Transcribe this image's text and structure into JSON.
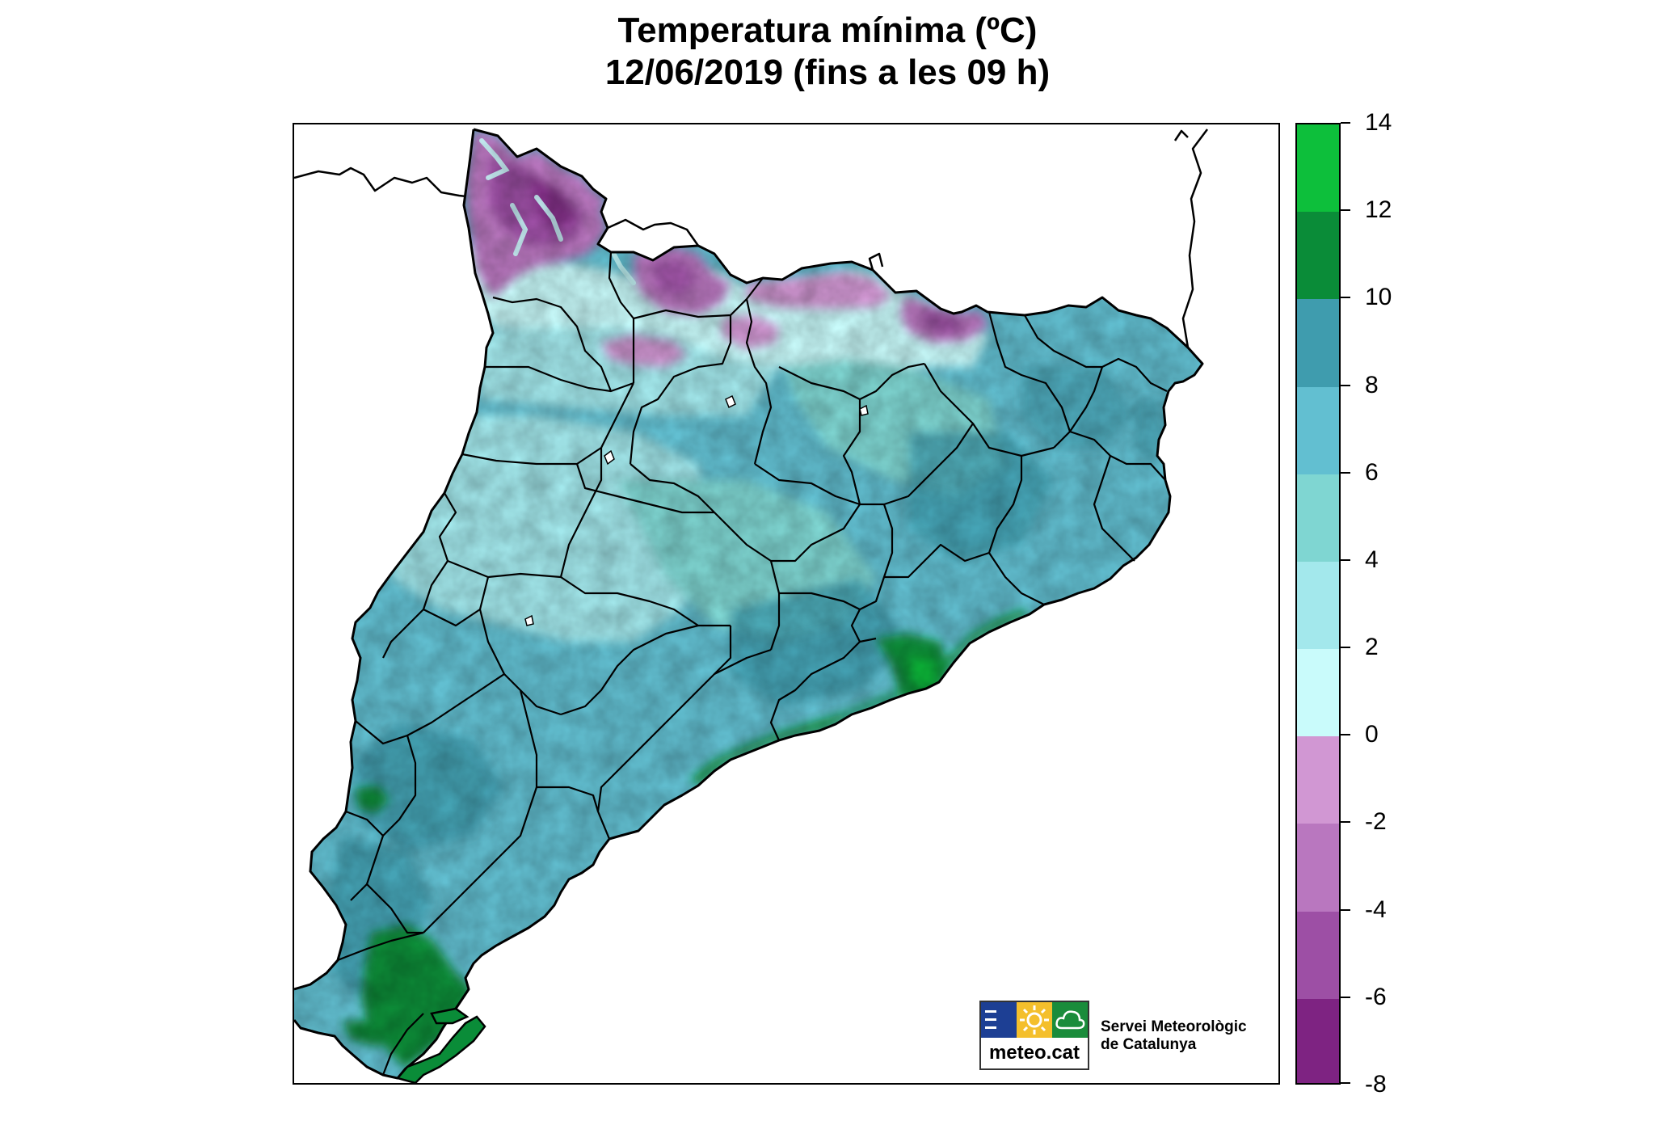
{
  "title": {
    "line1": "Temperatura mínima (ºC)",
    "line2": "12/06/2019 (fins a les 09 h)"
  },
  "legend": {
    "ticks": [
      "14",
      "12",
      "10",
      "8",
      "6",
      "4",
      "2",
      "0",
      "-2",
      "-4",
      "-6",
      "-8"
    ],
    "bins": [
      {
        "from": 12,
        "to": 14,
        "color": "#0dbf3b"
      },
      {
        "from": 10,
        "to": 12,
        "color": "#0a8c38"
      },
      {
        "from": 8,
        "to": 10,
        "color": "#3f9cae"
      },
      {
        "from": 6,
        "to": 8,
        "color": "#62bfd1"
      },
      {
        "from": 4,
        "to": 6,
        "color": "#7fd6d2"
      },
      {
        "from": 2,
        "to": 4,
        "color": "#a3e8ec"
      },
      {
        "from": 0,
        "to": 2,
        "color": "#c9fbfb"
      },
      {
        "from": -2,
        "to": 0,
        "color": "#d197d3"
      },
      {
        "from": -4,
        "to": -2,
        "color": "#b977bf"
      },
      {
        "from": -6,
        "to": -4,
        "color": "#9d4fa5"
      },
      {
        "from": -8,
        "to": -6,
        "color": "#7e2382"
      }
    ]
  },
  "logo": {
    "wordmark": "meteo.cat",
    "org_line1": "Servei Meteorològic",
    "org_line2": "de Catalunya",
    "colors": [
      "#1d3f94",
      "#f4bf2c",
      "#1a8c3b"
    ],
    "icons": [
      "meteo-lines-icon",
      "sun-icon",
      "cloud-icon"
    ]
  }
}
